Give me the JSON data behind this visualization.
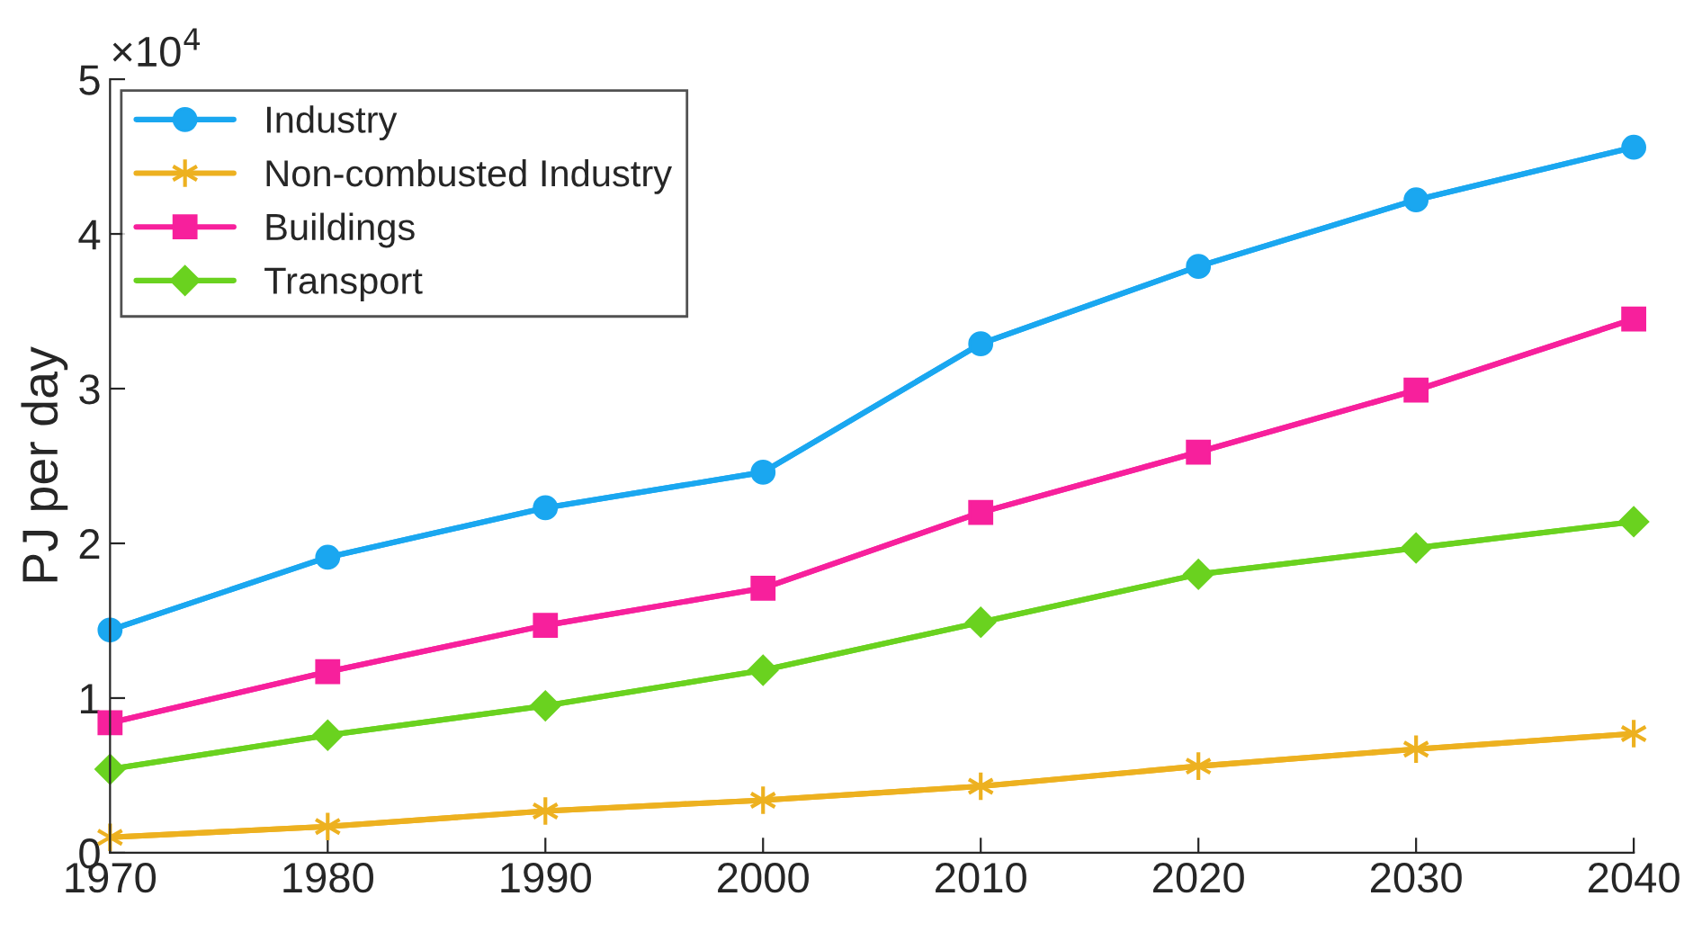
{
  "chart_data": {
    "type": "line",
    "ylabel": "PJ per day",
    "annotations": [
      "×10$^{4}$"
    ],
    "x": [
      1970,
      1980,
      1990,
      2000,
      2010,
      2020,
      2030,
      2040
    ],
    "xlim": [
      1970,
      2040
    ],
    "xticks": [
      1970,
      1980,
      1990,
      2000,
      2010,
      2020,
      2030,
      2040
    ],
    "ylim": [
      0,
      5
    ],
    "yticks": [
      0,
      1,
      2,
      3,
      4,
      5
    ],
    "grid": false,
    "legend": "top left",
    "line_style": "solid",
    "series": [
      {
        "name": "Industry",
        "color": "#1aa7f0",
        "marker": "circle",
        "values": [
          1.44,
          1.91,
          2.23,
          2.46,
          3.29,
          3.79,
          4.22,
          4.56
        ]
      },
      {
        "name": "Non-combusted Industry",
        "color": "#edb120",
        "marker": "cross",
        "values": [
          0.1,
          0.17,
          0.27,
          0.34,
          0.43,
          0.56,
          0.67,
          0.77
        ]
      },
      {
        "name": "Buildings",
        "color": "#f7209c",
        "marker": "square",
        "values": [
          0.84,
          1.17,
          1.47,
          1.71,
          2.2,
          2.59,
          2.99,
          3.45
        ]
      },
      {
        "name": "Transport",
        "color": "#6ad21f",
        "marker": "diamond",
        "values": [
          0.54,
          0.76,
          0.95,
          1.18,
          1.49,
          1.8,
          1.97,
          2.14
        ]
      }
    ]
  }
}
